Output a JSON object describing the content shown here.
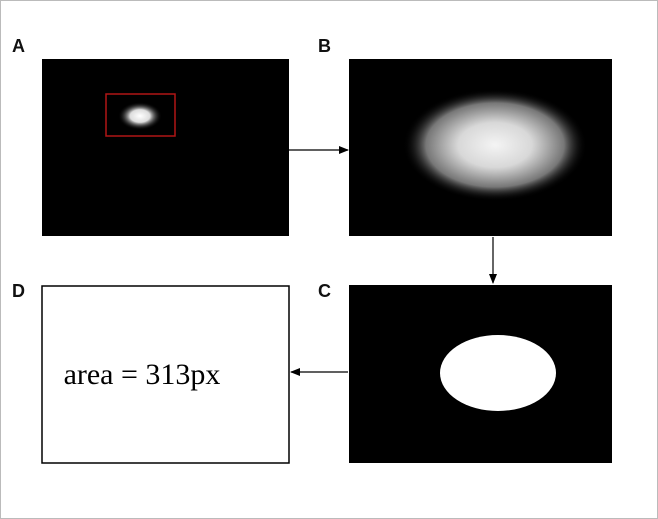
{
  "panels": [
    {
      "label": "A"
    },
    {
      "label": "B"
    },
    {
      "label": "C"
    },
    {
      "label": "D",
      "text": "area = 313px"
    }
  ]
}
